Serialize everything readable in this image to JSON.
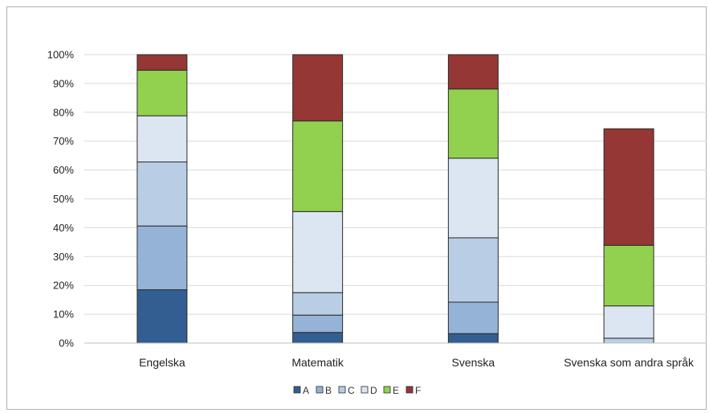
{
  "chart_data": {
    "type": "bar",
    "stacked": true,
    "normalized": true,
    "categories": [
      "Engelska",
      "Matematik",
      "Svenska",
      "Svenska som andra språk"
    ],
    "series": [
      {
        "name": "A",
        "color": "#335e91",
        "values": [
          18.5,
          3.7,
          3.3,
          0.0
        ]
      },
      {
        "name": "B",
        "color": "#95b3d7",
        "values": [
          22.1,
          6.0,
          10.9,
          0.0
        ]
      },
      {
        "name": "C",
        "color": "#b9cde5",
        "values": [
          22.2,
          7.8,
          22.3,
          1.7
        ]
      },
      {
        "name": "D",
        "color": "#dce6f2",
        "values": [
          16.0,
          28.1,
          27.6,
          11.2
        ]
      },
      {
        "name": "E",
        "color": "#92d050",
        "values": [
          15.8,
          31.4,
          24.0,
          21.0
        ]
      },
      {
        "name": "F",
        "color": "#953735",
        "values": [
          5.4,
          23.0,
          11.9,
          40.4
        ]
      }
    ],
    "ylim": [
      0,
      100
    ],
    "yticks": [
      "0%",
      "10%",
      "20%",
      "30%",
      "40%",
      "50%",
      "60%",
      "70%",
      "80%",
      "90%",
      "100%"
    ],
    "grid": true,
    "legend_position": "bottom"
  }
}
